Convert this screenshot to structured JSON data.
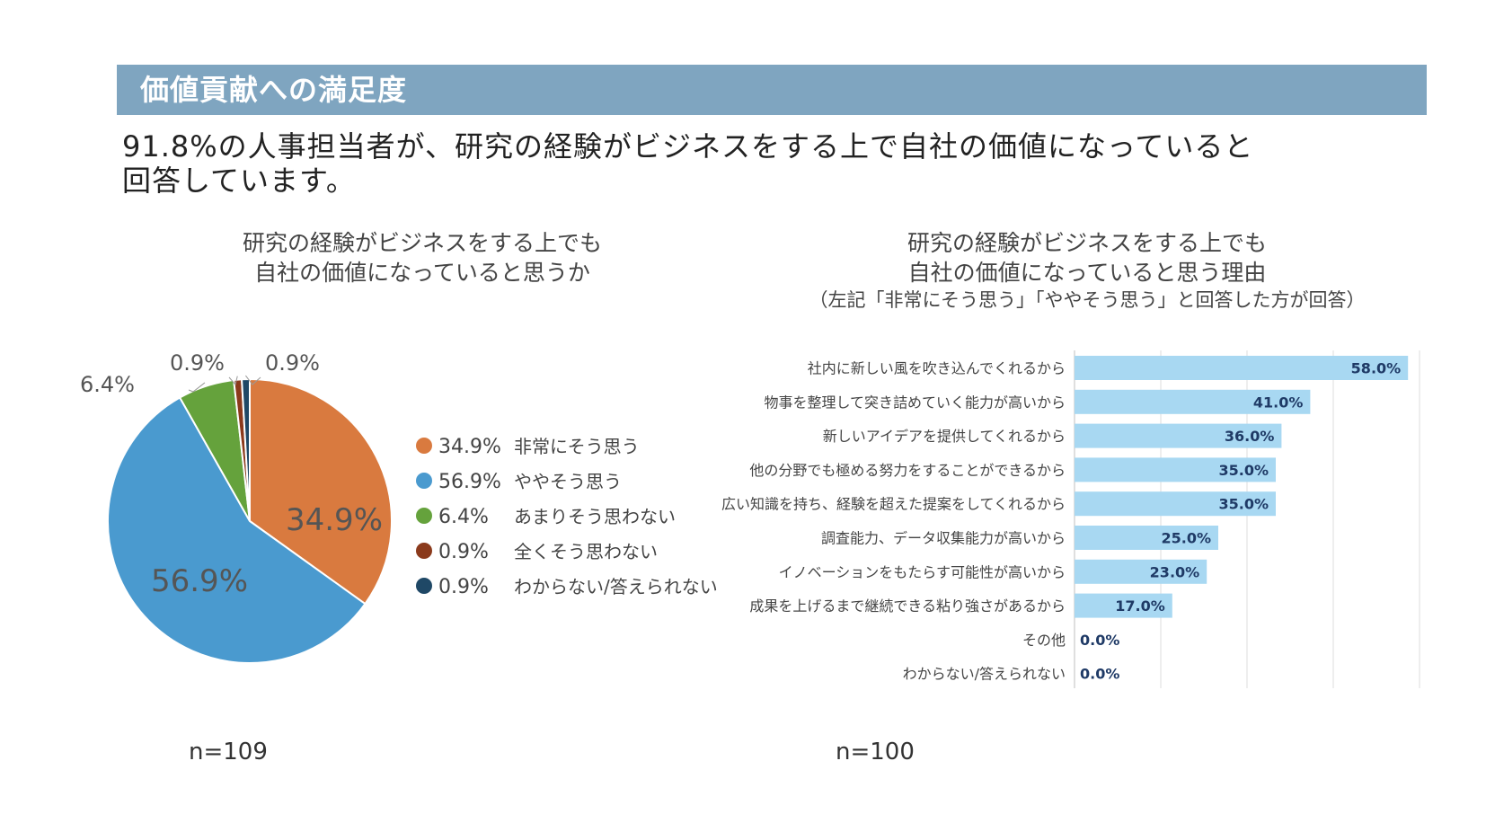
{
  "header": {
    "title": "価値貢献への満足度"
  },
  "lead": {
    "line1": "91.8%の人事担当者が、研究の経験がビジネスをする上で自社の価値になっていると",
    "line2": "回答しています。"
  },
  "chart_data": [
    {
      "type": "pie",
      "title_lines": [
        "研究の経験がビジネスをする上でも",
        "自社の価値になっていると思うか"
      ],
      "n_label": "n=109",
      "series": [
        {
          "label": "非常にそう思う",
          "value": 34.9,
          "display": "34.9%",
          "color": "#d97a3f"
        },
        {
          "label": "ややそう思う",
          "value": 56.9,
          "display": "56.9%",
          "color": "#4a9acf"
        },
        {
          "label": "あまりそう思わない",
          "value": 6.4,
          "display": "6.4%",
          "color": "#65a23c"
        },
        {
          "label": "全くそう思わない",
          "value": 0.9,
          "display": "0.9%",
          "color": "#8b3a1c"
        },
        {
          "label": "わからない/答えられない",
          "value": 0.9,
          "display": "0.9%",
          "color": "#1f4866"
        }
      ]
    },
    {
      "type": "bar",
      "orientation": "horizontal",
      "title_lines": [
        "研究の経験がビジネスをする上でも",
        "自社の価値になっていると思う理由"
      ],
      "subtitle": "（左記「非常にそう思う」「ややそう思う」と回答した方が回答）",
      "n_label": "n=100",
      "bar_color": "#a8d8f2",
      "value_color": "#1f3a66",
      "xlim": [
        0,
        60
      ],
      "gridlines": [
        0,
        15,
        30,
        45,
        60
      ],
      "categories": [
        "社内に新しい風を吹き込んでくれるから",
        "物事を整理して突き詰めていく能力が高いから",
        "新しいアイデアを提供してくれるから",
        "他の分野でも極める努力をすることができるから",
        "広い知識を持ち、経験を超えた提案をしてくれるから",
        "調査能力、データ収集能力が高いから",
        "イノベーションをもたらす可能性が高いから",
        "成果を上げるまで継続できる粘り強さがあるから",
        "その他",
        "わからない/答えられない"
      ],
      "values": [
        58.0,
        41.0,
        36.0,
        35.0,
        35.0,
        25.0,
        23.0,
        17.0,
        0.0,
        0.0
      ],
      "value_labels": [
        "58.0%",
        "41.0%",
        "36.0%",
        "35.0%",
        "35.0%",
        "25.0%",
        "23.0%",
        "17.0%",
        "0.0%",
        "0.0%"
      ]
    }
  ]
}
